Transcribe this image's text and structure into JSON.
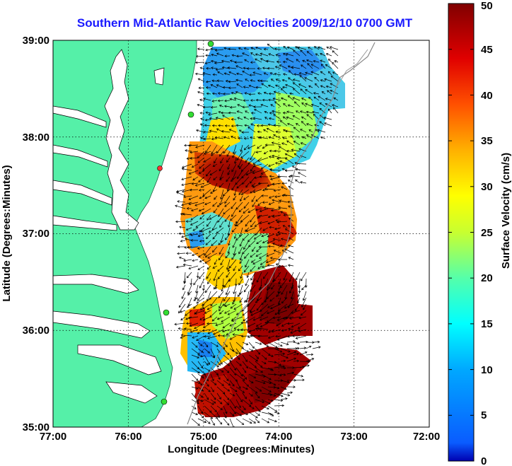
{
  "title": "Southern Mid-Atlantic Raw Velocities 2009/12/10 0700 GMT",
  "x_axis": {
    "label": "Longitude (Degrees:Minutes)",
    "ticks": [
      "77:00",
      "76:00",
      "75:00",
      "74:00",
      "73:00",
      "72:00"
    ],
    "range": [
      -77,
      -72
    ]
  },
  "y_axis": {
    "label": "Latitude (Degrees:Minutes)",
    "ticks": [
      "35:00",
      "36:00",
      "37:00",
      "38:00",
      "39:00"
    ],
    "range": [
      35,
      39
    ]
  },
  "colorbar": {
    "label": "Surface Velocity (cm/s)",
    "ticks": [
      "0",
      "5",
      "10",
      "15",
      "20",
      "25",
      "30",
      "35",
      "40",
      "45",
      "50"
    ],
    "range": [
      0,
      50
    ]
  },
  "colors": {
    "land": "#55f0a8",
    "title": "#1a1aff",
    "station_green": "#33dd33",
    "station_red": "#ff3333"
  },
  "grid": "dotted"
}
